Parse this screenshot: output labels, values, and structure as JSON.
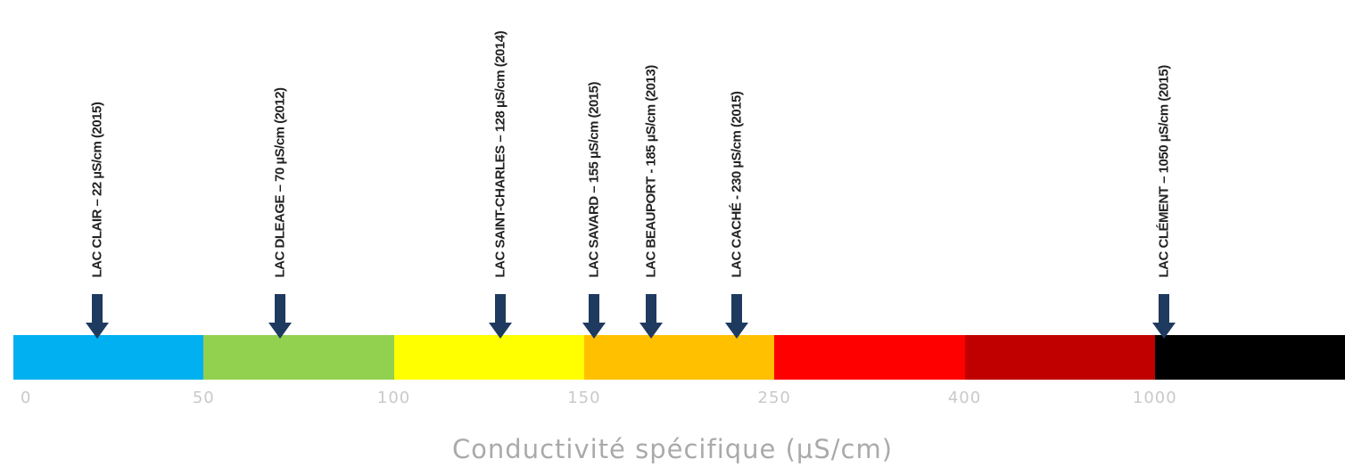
{
  "chart_data": {
    "type": "bar",
    "title": "",
    "xlabel": "Conductivité spécifique (µS/cm)",
    "bands": [
      {
        "from": "0",
        "to": "50",
        "color": "#00b0f0"
      },
      {
        "from": "50",
        "to": "100",
        "color": "#92d050"
      },
      {
        "from": "100",
        "to": "150",
        "color": "#ffff00"
      },
      {
        "from": "150",
        "to": "250",
        "color": "#ffc000"
      },
      {
        "from": "250",
        "to": "400",
        "color": "#ff0000"
      },
      {
        "from": "400",
        "to": "1000",
        "color": "#c00000"
      },
      {
        "from": "1000",
        "to": "",
        "color": "#000000"
      }
    ],
    "tick_labels": [
      "0",
      "50",
      "100",
      "150",
      "250",
      "400",
      "1000"
    ],
    "markers": [
      {
        "label": "LAC CLAIR – 22 µS/cm (2015)",
        "name": "LAC CLAIR",
        "value": 22,
        "year": 2015
      },
      {
        "label": "LAC DLEAGE – 70 µS/cm (2012)",
        "name": "LAC DLEAGE",
        "value": 70,
        "year": 2012
      },
      {
        "label": "LAC SAINT-CHARLES – 128 µS/cm (2014)",
        "name": "LAC SAINT-CHARLES",
        "value": 128,
        "year": 2014
      },
      {
        "label": "LAC SAVARD – 155  µS/cm (2015)",
        "name": "LAC SAVARD",
        "value": 155,
        "year": 2015
      },
      {
        "label": "LAC BEAUPORT - 185 µS/cm (2013)",
        "name": "LAC BEAUPORT",
        "value": 185,
        "year": 2013
      },
      {
        "label": "LAC CACHÉ - 230 µS/cm (2015)",
        "name": "LAC CACHÉ",
        "value": 230,
        "year": 2015
      },
      {
        "label": "LAC CLÉMENT – 1050 µS/cm (2015)",
        "name": "LAC CLÉMENT",
        "value": 1050,
        "year": 2015
      }
    ],
    "arrow_color": "#1f3a5f"
  }
}
